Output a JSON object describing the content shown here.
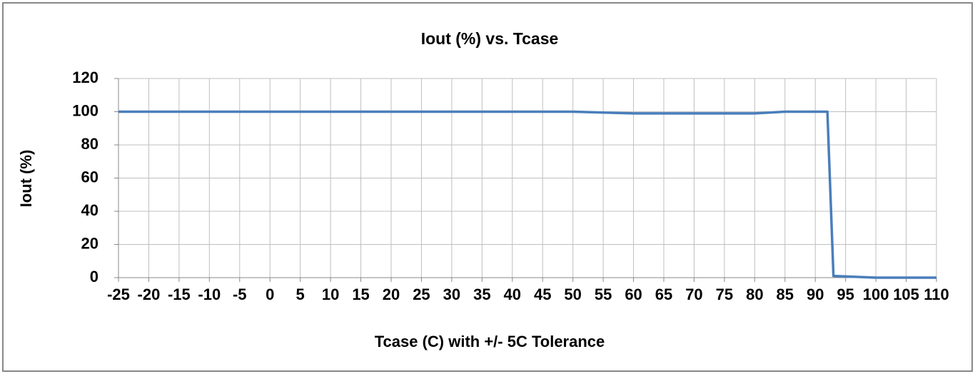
{
  "chart_data": {
    "type": "line",
    "title": "Iout (%) vs. Tcase",
    "xlabel": "Tcase (C) with +/- 5C Tolerance",
    "ylabel": "Iout (%)",
    "series": [
      {
        "name": "Iout (%)",
        "color": "#4a7ebb",
        "x": [
          -25,
          50,
          60,
          80,
          85,
          92,
          93,
          100,
          110
        ],
        "values": [
          100,
          100,
          99,
          99,
          100,
          100,
          1,
          0,
          0
        ]
      }
    ],
    "xlim": [
      -25,
      110
    ],
    "xticks": [
      -25,
      -20,
      -15,
      -10,
      -5,
      0,
      5,
      10,
      15,
      20,
      25,
      30,
      35,
      40,
      45,
      50,
      55,
      60,
      65,
      70,
      75,
      80,
      85,
      90,
      95,
      100,
      105,
      110
    ],
    "ylim": [
      0,
      120
    ],
    "yticks": [
      0,
      20,
      40,
      60,
      80,
      100,
      120
    ],
    "grid": true
  }
}
